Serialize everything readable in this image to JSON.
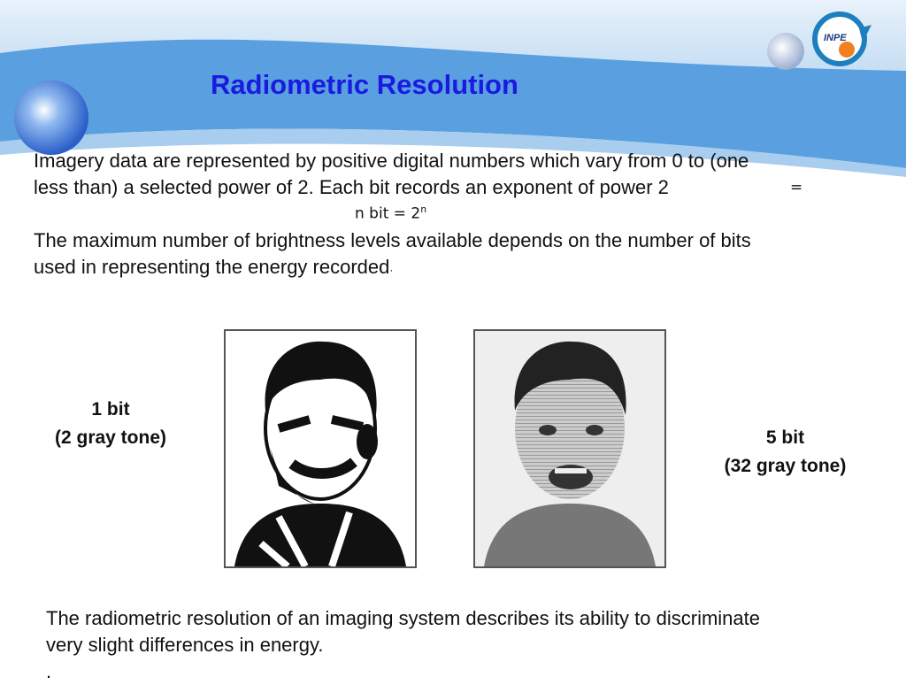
{
  "slide": {
    "title": "Radiometric Resolution",
    "logo_text": "INPE",
    "paragraph1_line1": "Imagery data are represented by positive digital numbers which vary from 0 to (one",
    "paragraph1_line2": "less than) a selected power of 2. Each bit records an exponent of power 2",
    "equals": "=",
    "formula_base": "n bit = 2",
    "formula_exp": "n",
    "paragraph2_line1": "The maximum number of brightness levels available depends on the number of bits",
    "paragraph2_line2": "used in representing the energy recorded",
    "paragraph2_end": "·",
    "left_label_line1": "1 bit",
    "left_label_line2": "(2 gray tone)",
    "right_label_line1": "5 bit",
    "right_label_line2": "(32 gray tone)",
    "bottom_line1": "The radiometric resolution of an imaging system describes its ability to discriminate",
    "bottom_line2": "very slight differences in energy.",
    "bottom_line3": ".",
    "colors": {
      "title": "#1a1ae0",
      "band": "#5aa0e0"
    }
  }
}
